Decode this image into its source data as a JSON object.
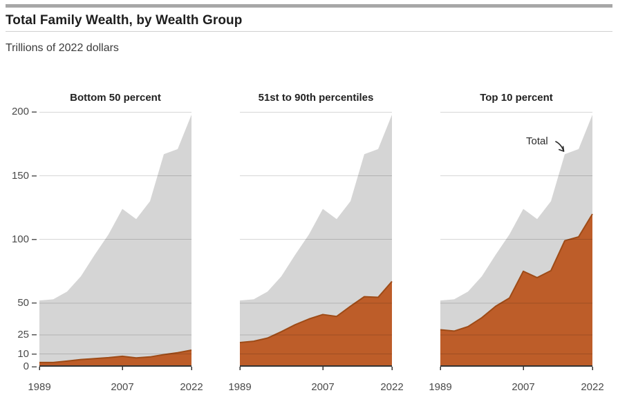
{
  "header": {
    "title": "Total Family Wealth, by Wealth Group",
    "subtitle": "Trillions of 2022 dollars"
  },
  "annotation": {
    "total_label": "Total"
  },
  "colors": {
    "accent_bar": "#a7a7a7",
    "total_fill": "#d5d5d5",
    "group_fill": "#bd5d29",
    "group_edge": "#9e4b17",
    "gridline": "rgba(0,0,0,0.16)",
    "axis": "#333333",
    "tick": "#4a4a4a"
  },
  "axes": {
    "ylim": [
      0,
      200
    ],
    "x_range": [
      1989,
      2022
    ],
    "y_ticks": [
      0,
      10,
      25,
      50,
      100,
      150,
      200
    ],
    "x_ticks": [
      1989,
      2007,
      2022
    ]
  },
  "chart_data": [
    {
      "type": "area",
      "title": "Bottom 50 percent",
      "x": [
        1989,
        1992,
        1995,
        1998,
        2001,
        2004,
        2007,
        2010,
        2013,
        2016,
        2019,
        2022
      ],
      "series": [
        {
          "name": "Total",
          "values": [
            52,
            53,
            59,
            71,
            88,
            104,
            124,
            116,
            130,
            167,
            171,
            198
          ]
        },
        {
          "name": "Bottom 50 percent",
          "values": [
            3.3,
            3.3,
            4.4,
            5.6,
            6.4,
            7.1,
            8.2,
            6.9,
            7.7,
            9.5,
            11,
            13
          ]
        }
      ],
      "xlabel": "",
      "ylabel": "Trillions of 2022 dollars",
      "ylim": [
        0,
        200
      ],
      "grid": true,
      "legend": "none"
    },
    {
      "type": "area",
      "title": "51st to 90th percentiles",
      "x": [
        1989,
        1992,
        1995,
        1998,
        2001,
        2004,
        2007,
        2010,
        2013,
        2016,
        2019,
        2022
      ],
      "series": [
        {
          "name": "Total",
          "values": [
            52,
            53,
            59,
            71,
            88,
            104,
            124,
            116,
            130,
            167,
            171,
            198
          ]
        },
        {
          "name": "51st to 90th percentiles",
          "values": [
            19,
            20,
            22.5,
            27.5,
            33,
            37.5,
            41,
            39.5,
            47.5,
            55,
            54.5,
            67
          ]
        }
      ],
      "xlabel": "",
      "ylabel": "Trillions of 2022 dollars",
      "ylim": [
        0,
        200
      ],
      "grid": true,
      "legend": "none"
    },
    {
      "type": "area",
      "title": "Top 10 percent",
      "x": [
        1989,
        1992,
        1995,
        1998,
        2001,
        2004,
        2007,
        2010,
        2013,
        2016,
        2019,
        2022
      ],
      "series": [
        {
          "name": "Total",
          "values": [
            52,
            53,
            59,
            71,
            88,
            104,
            124,
            116,
            130,
            167,
            171,
            198
          ]
        },
        {
          "name": "Top 10 percent",
          "values": [
            29,
            28,
            31.5,
            38.5,
            47.5,
            54,
            75,
            70,
            75.5,
            99,
            102,
            120
          ]
        }
      ],
      "xlabel": "",
      "ylabel": "Trillions of 2022 dollars",
      "ylim": [
        0,
        200
      ],
      "grid": true,
      "legend": "none"
    }
  ]
}
